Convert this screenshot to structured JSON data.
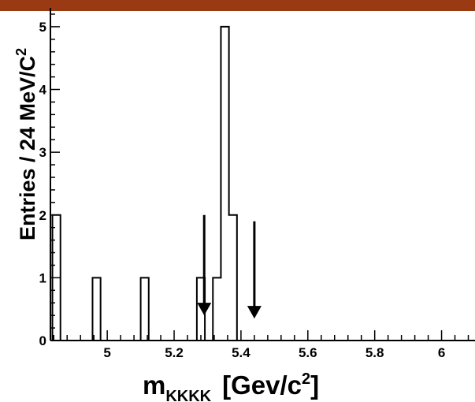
{
  "header_band": {
    "color": "#9a3a12"
  },
  "chart_data": {
    "type": "histogram",
    "ylabel": {
      "text": "Entries / 24 MeV/C",
      "superscript": "2"
    },
    "xlabel": {
      "main": "m",
      "subscript": "KKKK",
      "units": "[Gev/c",
      "superscript": "2",
      "close": "]"
    },
    "xlim": [
      4.83,
      6.1
    ],
    "ylim": [
      0,
      5.3
    ],
    "x_ticks": [
      "5",
      "5.2",
      "5.4",
      "5.6",
      "5.8",
      "6"
    ],
    "y_ticks": [
      "0",
      "1",
      "2",
      "3",
      "4",
      "5"
    ],
    "bin_width": 0.024,
    "bins": [
      {
        "x": 4.836,
        "count": 2
      },
      {
        "x": 4.956,
        "count": 1
      },
      {
        "x": 5.1,
        "count": 1
      },
      {
        "x": 5.268,
        "count": 1
      },
      {
        "x": 5.316,
        "count": 1
      },
      {
        "x": 5.34,
        "count": 5
      },
      {
        "x": 5.364,
        "count": 2
      }
    ],
    "arrows": [
      {
        "x": 5.29,
        "y_top": 2.0,
        "y_tip": 0.4
      },
      {
        "x": 5.44,
        "y_top": 1.9,
        "y_tip": 0.35
      }
    ],
    "grid": false,
    "line_color": "#000000"
  }
}
